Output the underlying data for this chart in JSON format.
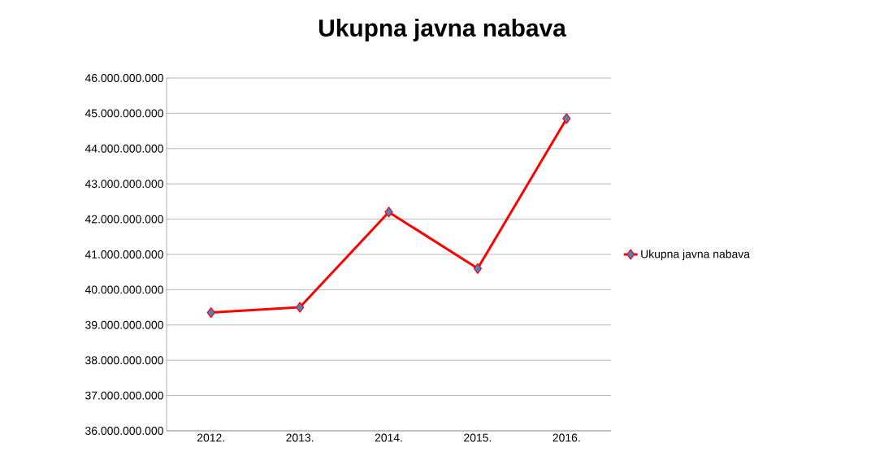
{
  "chart_data": {
    "type": "line",
    "title": "Ukupna javna nabava",
    "categories": [
      "2012.",
      "2013.",
      "2014.",
      "2015.",
      "2016."
    ],
    "series": [
      {
        "name": "Ukupna javna nabava",
        "color": "#ff0000",
        "values": [
          39350000000,
          39500000000,
          42200000000,
          40600000000,
          44850000000
        ]
      }
    ],
    "ylim": [
      36000000000,
      46000000000
    ],
    "yticks": [
      {
        "value": 36000000000,
        "label": "36.000.000.000"
      },
      {
        "value": 37000000000,
        "label": "37.000.000.000"
      },
      {
        "value": 38000000000,
        "label": "38.000.000.000"
      },
      {
        "value": 39000000000,
        "label": "39.000.000.000"
      },
      {
        "value": 40000000000,
        "label": "40.000.000.000"
      },
      {
        "value": 41000000000,
        "label": "41.000.000.000"
      },
      {
        "value": 42000000000,
        "label": "42.000.000.000"
      },
      {
        "value": 43000000000,
        "label": "43.000.000.000"
      },
      {
        "value": 44000000000,
        "label": "44.000.000.000"
      },
      {
        "value": 45000000000,
        "label": "45.000.000.000"
      },
      {
        "value": 46000000000,
        "label": "46.000.000.000"
      }
    ],
    "grid": "y",
    "legend": "right",
    "marker": "diamond",
    "line_style": "solid"
  }
}
